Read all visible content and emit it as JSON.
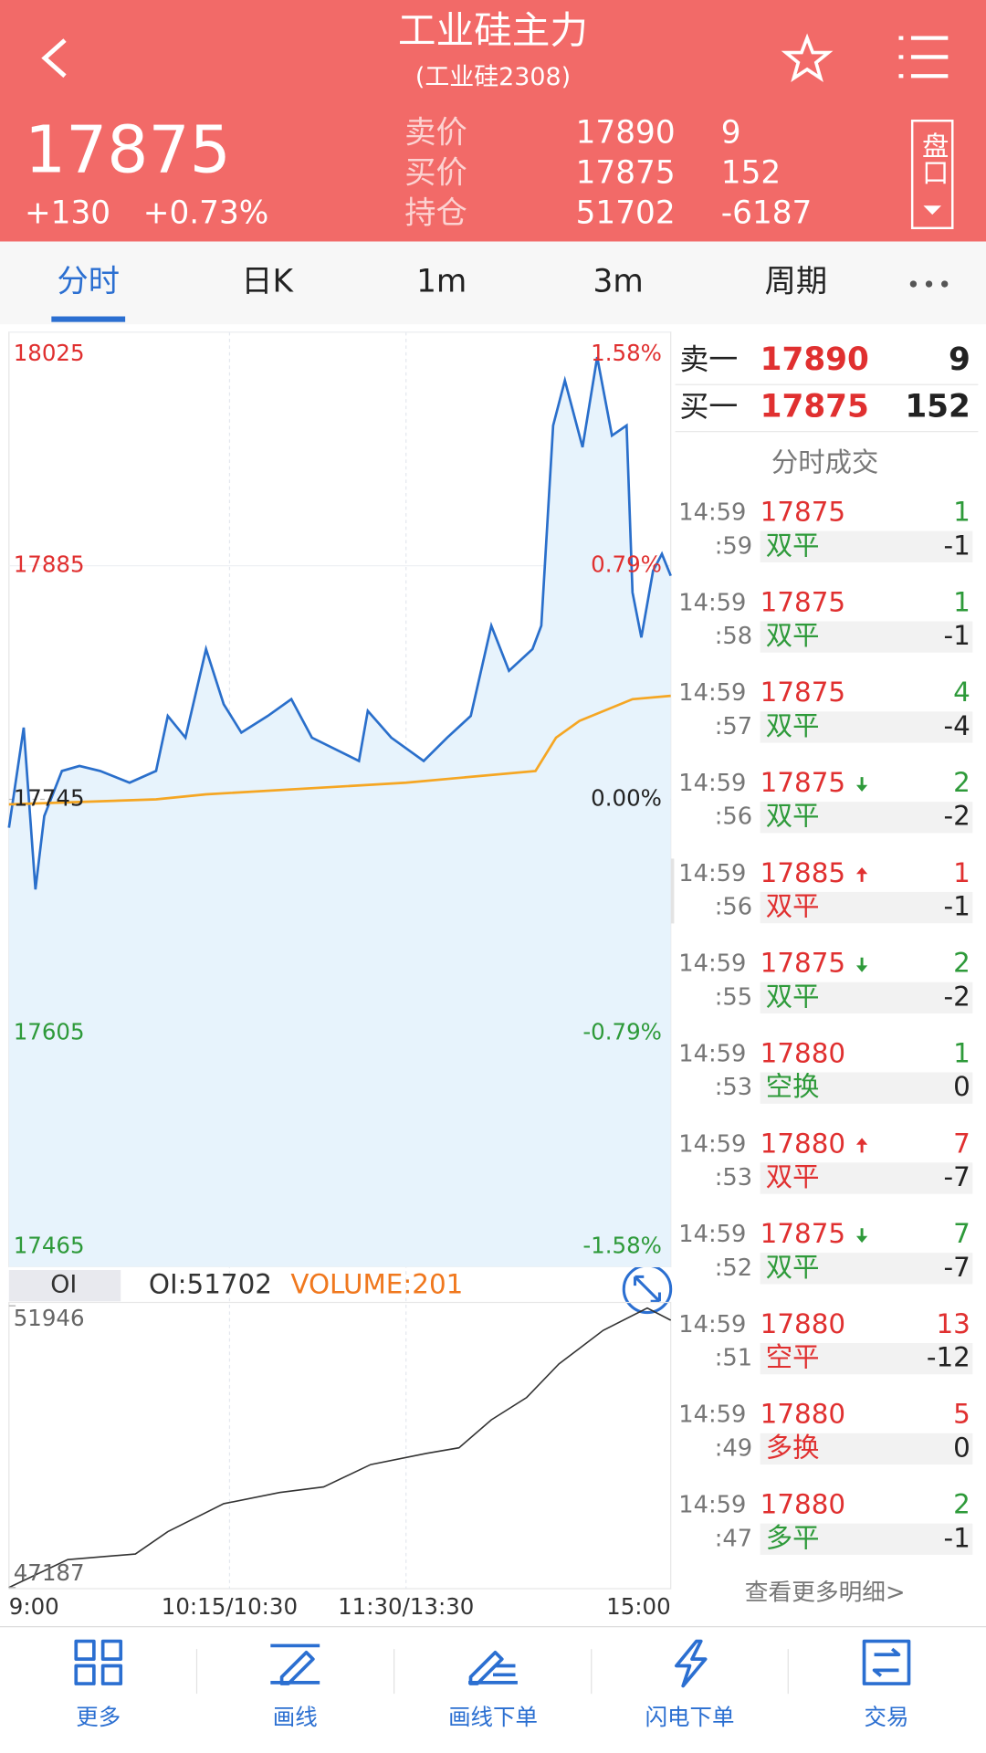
{
  "header": {
    "title": "工业硅主力",
    "subtitle": "(工业硅2308)"
  },
  "quote": {
    "price": "17875",
    "change": "+130",
    "change_pct": "+0.73%",
    "rows": [
      {
        "label": "卖价",
        "value": "17890",
        "qty": "9"
      },
      {
        "label": "买价",
        "value": "17875",
        "qty": "152"
      },
      {
        "label": "持仓",
        "value": "51702",
        "qty": "-6187"
      }
    ],
    "side_button": "盘口"
  },
  "tabs": {
    "items": [
      "分时",
      "日K",
      "1m",
      "3m",
      "周期"
    ],
    "active": 0
  },
  "price_chart": {
    "type": "line",
    "ylim": [
      17465,
      18025
    ],
    "yticks": [
      18025,
      17885,
      17745,
      17605,
      17465
    ],
    "pct_labels": [
      "1.58%",
      "0.79%",
      "0.00%",
      "-0.79%",
      "-1.58%"
    ],
    "xlim": [
      0,
      225
    ],
    "xticks": [
      {
        "value": 0,
        "label": "9:00"
      },
      {
        "value": 75,
        "label": "10:15/10:30"
      },
      {
        "value": 135,
        "label": "11:30/13:30"
      },
      {
        "value": 225,
        "label": "15:00"
      }
    ],
    "series": [
      {
        "color": "#2a6fcb",
        "x": [
          0,
          5,
          9,
          12,
          18,
          24,
          31,
          41,
          50,
          54,
          60,
          67,
          73,
          79,
          88,
          96,
          103,
          111,
          119,
          122,
          130,
          141,
          149,
          157,
          164,
          170,
          178,
          181,
          185,
          189,
          195,
          200,
          205,
          210,
          212,
          215,
          219,
          222,
          225
        ],
        "values": [
          17728,
          17788,
          17691,
          17735,
          17762,
          17765,
          17762,
          17755,
          17762,
          17795,
          17782,
          17835,
          17802,
          17785,
          17795,
          17805,
          17782,
          17775,
          17768,
          17798,
          17782,
          17768,
          17782,
          17795,
          17849,
          17822,
          17835,
          17849,
          17969,
          17996,
          17956,
          18010,
          17963,
          17969,
          17869,
          17842,
          17882,
          17892,
          17879
        ]
      },
      {
        "color": "#f5a623",
        "x": [
          0,
          50,
          67,
          135,
          179,
          186,
          194,
          212,
          225
        ],
        "values": [
          17742,
          17745,
          17748,
          17755,
          17762,
          17782,
          17792,
          17805,
          17807
        ]
      }
    ]
  },
  "oi_chart": {
    "type": "line",
    "legend": "OI",
    "oi_label": "OI:51702",
    "volume_label": "VOLUME:201",
    "ylim": [
      47187,
      51946
    ],
    "yticks": [
      51946,
      47187
    ],
    "color": "#333333",
    "x": [
      0,
      20,
      43,
      54,
      73,
      92,
      107,
      123,
      142,
      153,
      164,
      176,
      187,
      202,
      217,
      225
    ],
    "values": [
      47187,
      47659,
      47754,
      48131,
      48603,
      48792,
      48887,
      49264,
      49453,
      49548,
      50020,
      50398,
      50964,
      51531,
      51908,
      51702
    ]
  },
  "order_book": [
    {
      "label": "卖一",
      "price": "17890",
      "qty": "9"
    },
    {
      "label": "买一",
      "price": "17875",
      "qty": "152"
    }
  ],
  "trades_title": "分时成交",
  "trades": [
    {
      "time": "14:59",
      "sec": ":59",
      "price": "17875",
      "qty": "1",
      "qty_color": "#2e9a3a",
      "type": "双平",
      "type_color": "#2e9a3a",
      "delta": "-1"
    },
    {
      "time": "14:59",
      "sec": ":58",
      "price": "17875",
      "qty": "1",
      "qty_color": "#2e9a3a",
      "type": "双平",
      "type_color": "#2e9a3a",
      "delta": "-1"
    },
    {
      "time": "14:59",
      "sec": ":57",
      "price": "17875",
      "qty": "4",
      "qty_color": "#2e9a3a",
      "type": "双平",
      "type_color": "#2e9a3a",
      "delta": "-4"
    },
    {
      "time": "14:59",
      "sec": ":56",
      "price": "17875",
      "dir": "down",
      "qty": "2",
      "qty_color": "#2e9a3a",
      "type": "双平",
      "type_color": "#2e9a3a",
      "delta": "-2"
    },
    {
      "time": "14:59",
      "sec": ":56",
      "price": "17885",
      "dir": "up",
      "qty": "1",
      "qty_color": "#e03030",
      "type": "双平",
      "type_color": "#e03030",
      "delta": "-1"
    },
    {
      "time": "14:59",
      "sec": ":55",
      "price": "17875",
      "dir": "down",
      "qty": "2",
      "qty_color": "#2e9a3a",
      "type": "双平",
      "type_color": "#2e9a3a",
      "delta": "-2"
    },
    {
      "time": "14:59",
      "sec": ":53",
      "price": "17880",
      "qty": "1",
      "qty_color": "#2e9a3a",
      "type": "空换",
      "type_color": "#2e9a3a",
      "delta": "0"
    },
    {
      "time": "14:59",
      "sec": ":53",
      "price": "17880",
      "dir": "up",
      "qty": "7",
      "qty_color": "#e03030",
      "type": "双平",
      "type_color": "#e03030",
      "delta": "-7"
    },
    {
      "time": "14:59",
      "sec": ":52",
      "price": "17875",
      "dir": "down",
      "qty": "7",
      "qty_color": "#2e9a3a",
      "type": "双平",
      "type_color": "#2e9a3a",
      "delta": "-7"
    },
    {
      "time": "14:59",
      "sec": ":51",
      "price": "17880",
      "qty": "13",
      "qty_color": "#e03030",
      "type": "空平",
      "type_color": "#e03030",
      "delta": "-12"
    },
    {
      "time": "14:59",
      "sec": ":49",
      "price": "17880",
      "qty": "5",
      "qty_color": "#e03030",
      "type": "多换",
      "type_color": "#e03030",
      "delta": "0"
    },
    {
      "time": "14:59",
      "sec": ":47",
      "price": "17880",
      "qty": "2",
      "qty_color": "#2e9a3a",
      "type": "多平",
      "type_color": "#2e9a3a",
      "delta": "-1"
    }
  ],
  "more_link": "查看更多明细>",
  "bottom_nav": [
    "更多",
    "画线",
    "画线下单",
    "闪电下单",
    "交易"
  ]
}
